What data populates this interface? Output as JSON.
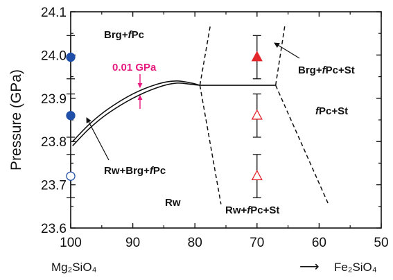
{
  "chart_data": {
    "type": "scatter",
    "ylabel": "Pressure (GPa)",
    "xlim": [
      100,
      50
    ],
    "ylim": [
      23.6,
      24.1
    ],
    "x_ticks": [
      100,
      90,
      80,
      70,
      60,
      50
    ],
    "y_ticks": [
      23.6,
      23.7,
      23.8,
      23.9,
      24.0,
      24.1
    ],
    "y_tick_labels": [
      "23.6",
      "23.7",
      "23.8",
      "23.9",
      "24.0",
      "24.1"
    ],
    "endmember_left": "Mg₂SiO₄",
    "endmember_right": "Fe₂SiO₄",
    "arrow_right": "⟶",
    "colors": {
      "blue": "#1f4fa8",
      "red": "#e3262c",
      "pink": "#e6197f"
    },
    "series": [
      {
        "marker": "circle",
        "points": [
          {
            "x": 100,
            "y": 23.995,
            "err": 0.05,
            "filled": true
          },
          {
            "x": 100,
            "y": 23.86,
            "err": 0.05,
            "filled": true
          },
          {
            "x": 100,
            "y": 23.72,
            "err": 0.05,
            "filled": false
          }
        ]
      },
      {
        "marker": "triangle",
        "points": [
          {
            "x": 70,
            "y": 23.995,
            "err": 0.05,
            "filled": true
          },
          {
            "x": 70,
            "y": 23.86,
            "err": 0.05,
            "filled": false
          },
          {
            "x": 70,
            "y": 23.72,
            "err": 0.05,
            "filled": false
          }
        ]
      }
    ],
    "boundaries": {
      "rw_brg_upper": [
        [
          99.7,
          23.8
        ],
        [
          97,
          23.84
        ],
        [
          94,
          23.875
        ],
        [
          90,
          23.91
        ],
        [
          86,
          23.933
        ],
        [
          83,
          23.94
        ],
        [
          80.5,
          23.935
        ],
        [
          79.2,
          23.93
        ]
      ],
      "rw_brg_lower": [
        [
          99.7,
          23.79
        ],
        [
          97,
          23.83
        ],
        [
          94,
          23.865
        ],
        [
          90,
          23.9
        ],
        [
          86,
          23.925
        ],
        [
          83,
          23.935
        ],
        [
          80.5,
          23.932
        ],
        [
          79.2,
          23.93
        ]
      ],
      "fpc_st_flat": [
        [
          79.2,
          23.93
        ],
        [
          67,
          23.93
        ]
      ],
      "dashed": [
        [
          [
            79.2,
            23.93
          ],
          [
            75.8,
            23.655
          ]
        ],
        [
          [
            79.2,
            23.93
          ],
          [
            77.5,
            24.07
          ]
        ],
        [
          [
            67,
            23.93
          ],
          [
            58.5,
            23.655
          ]
        ],
        [
          [
            67,
            23.93
          ],
          [
            65.5,
            24.07
          ]
        ]
      ]
    },
    "annotations": {
      "brg_fpc": "Brg+",
      "brg_fpc_f": "f",
      "brg_fpc_tail": "Pc",
      "rw_brg_fpc": "Rw+Brg+",
      "rw_brg_fpc_f": "f",
      "rw_brg_fpc_tail": "Pc",
      "rw": "Rw",
      "rw_fpc_st": "Rw+",
      "rw_fpc_st_f": "f",
      "rw_fpc_st_tail": "Pc+St",
      "fpc_st_f": "f",
      "fpc_st_tail": "Pc+St",
      "brg_fpc_st": "Brg+",
      "brg_fpc_st_f": "f",
      "brg_fpc_st_tail": "Pc+St",
      "gap_label": "0.01 GPa"
    }
  }
}
